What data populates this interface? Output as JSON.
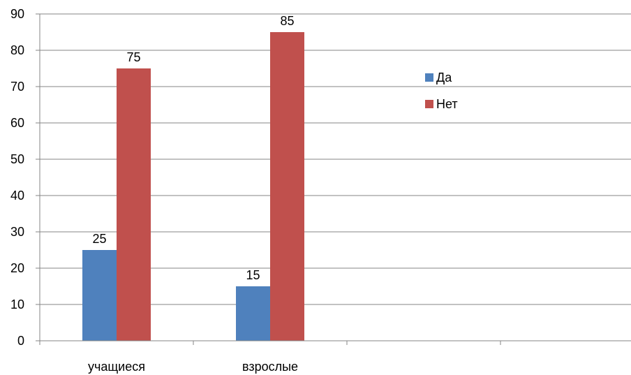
{
  "chart_data": {
    "type": "bar",
    "categories": [
      "учащиеся",
      "взрослые",
      "",
      ""
    ],
    "series": [
      {
        "name": "Да",
        "values": [
          25,
          15,
          null,
          null
        ],
        "color": "#4F81BD"
      },
      {
        "name": "Нет",
        "values": [
          75,
          85,
          null,
          null
        ],
        "color": "#C0504D"
      }
    ],
    "ylim": [
      0,
      90
    ],
    "yticks": [
      0,
      10,
      20,
      30,
      40,
      50,
      60,
      70,
      80,
      90
    ],
    "grid": true,
    "legend_position": "right",
    "data_labels": true,
    "title": "",
    "xlabel": "",
    "ylabel": ""
  }
}
